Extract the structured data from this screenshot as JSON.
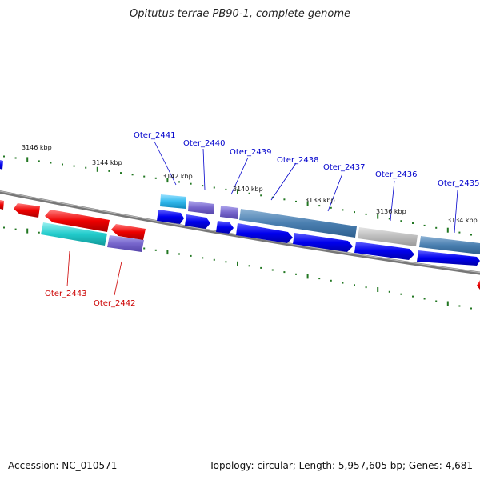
{
  "title": "Opitutus terrae PB90-1, complete genome",
  "footer": {
    "accession": "Accession: NC_010571",
    "summary": "Topology: circular; Length: 5,957,605 bp; Genes: 4,681"
  },
  "kbp_labels": [
    "3146 kbp",
    "3144 kbp",
    "3142 kbp",
    "3140 kbp",
    "3138 kbp",
    "3136 kbp",
    "3134 kbp"
  ],
  "gene_labels": [
    {
      "id": "Oter_2441",
      "color": "#0000cc"
    },
    {
      "id": "Oter_2440",
      "color": "#0000cc"
    },
    {
      "id": "Oter_2439",
      "color": "#0000cc"
    },
    {
      "id": "Oter_2438",
      "color": "#0000cc"
    },
    {
      "id": "Oter_2437",
      "color": "#0000cc"
    },
    {
      "id": "Oter_2436",
      "color": "#0000cc"
    },
    {
      "id": "Oter_2435",
      "color": "#0000cc"
    },
    {
      "id": "Oter_2443",
      "color": "#cc0000"
    },
    {
      "id": "Oter_2442",
      "color": "#cc0000"
    }
  ],
  "colors": {
    "forward_cds": "#0000ee",
    "reverse_cds": "#ee0000",
    "feature_cyan": "#22cccc",
    "feature_sky": "#33bbee",
    "feature_purple": "#7766cc",
    "feature_steel": "#4a7fb0",
    "feature_gray": "#bbbbbb",
    "tick": "#227722",
    "backbone": "#777777"
  }
}
